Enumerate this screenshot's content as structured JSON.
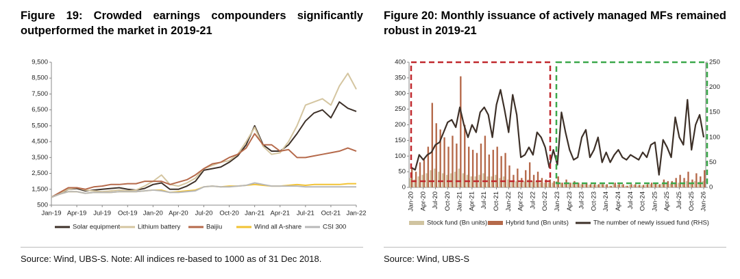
{
  "chart_data": [
    {
      "type": "line",
      "title": "Figure 19: Crowded earnings compounders significantly outperformed the market in 2019-21",
      "source": "Source: Wind, UBS-S. Note: All indices re-based to 1000 as of 31 Dec 2018.",
      "categories": [
        "Jan-19",
        null,
        null,
        "Apr-19",
        null,
        null,
        "Jul-19",
        null,
        null,
        "Oct-19",
        null,
        null,
        "Jan-20",
        null,
        null,
        "Apr-20",
        null,
        null,
        "Jul-20",
        null,
        null,
        "Oct-20",
        null,
        null,
        "Jan-21",
        null,
        null,
        "Apr-21",
        null,
        null,
        "Jul-21",
        null,
        null,
        "Oct-21",
        null,
        null,
        "Jan-22"
      ],
      "ylim": [
        500,
        9500
      ],
      "yticks": [
        500,
        {
          "value": 1500,
          "label": "1,500"
        },
        {
          "value": 2500,
          "label": "2,500"
        },
        {
          "value": 3500,
          "label": "3,500"
        },
        {
          "value": 4500,
          "label": "4,500"
        },
        {
          "value": 5500,
          "label": "5,500"
        },
        {
          "value": 6500,
          "label": "6,500"
        },
        {
          "value": 7500,
          "label": "7,500"
        },
        {
          "value": 8500,
          "label": "8,500"
        },
        {
          "value": 9500,
          "label": "9,500"
        }
      ],
      "series": [
        {
          "name": "Solar equipment",
          "color": "#3d3028",
          "values": [
            1000,
            1200,
            1500,
            1550,
            1400,
            1450,
            1500,
            1550,
            1600,
            1500,
            1450,
            1550,
            1800,
            1900,
            1500,
            1500,
            1700,
            2000,
            2700,
            2800,
            2900,
            3200,
            3600,
            4300,
            5500,
            4300,
            3900,
            3900,
            4300,
            5000,
            5800,
            6300,
            6500,
            6000,
            7000,
            6600,
            6400
          ]
        },
        {
          "name": "Lithium battery",
          "color": "#d4c5a0",
          "values": [
            1000,
            1250,
            1500,
            1600,
            1450,
            1400,
            1350,
            1400,
            1450,
            1400,
            1450,
            1700,
            2000,
            2400,
            1800,
            1700,
            1900,
            2200,
            2800,
            3000,
            3200,
            3300,
            3700,
            4500,
            5400,
            4200,
            3700,
            3800,
            4500,
            5500,
            6800,
            7000,
            7200,
            6800,
            8000,
            8800,
            7800
          ]
        },
        {
          "name": "Baijiu",
          "color": "#b5694a",
          "values": [
            1000,
            1300,
            1600,
            1600,
            1500,
            1650,
            1700,
            1800,
            1800,
            1850,
            1850,
            2000,
            2000,
            2000,
            1800,
            1950,
            2100,
            2400,
            2800,
            3100,
            3200,
            3500,
            3700,
            4100,
            5000,
            4300,
            4300,
            3900,
            4000,
            3500,
            3500,
            3600,
            3700,
            3800,
            3900,
            4100,
            3900
          ]
        },
        {
          "name": "Wind all A-share",
          "color": "#f2c232",
          "values": [
            1000,
            1200,
            1350,
            1350,
            1250,
            1300,
            1300,
            1300,
            1350,
            1350,
            1350,
            1400,
            1450,
            1450,
            1300,
            1350,
            1400,
            1450,
            1650,
            1700,
            1650,
            1700,
            1700,
            1750,
            1800,
            1750,
            1700,
            1700,
            1750,
            1800,
            1750,
            1800,
            1800,
            1800,
            1800,
            1850,
            1850
          ]
        },
        {
          "name": "CSI 300",
          "color": "#b8b8b8",
          "values": [
            1000,
            1200,
            1350,
            1350,
            1250,
            1300,
            1300,
            1300,
            1350,
            1350,
            1350,
            1400,
            1450,
            1400,
            1300,
            1300,
            1350,
            1400,
            1650,
            1700,
            1650,
            1650,
            1700,
            1750,
            1900,
            1800,
            1700,
            1700,
            1700,
            1700,
            1650,
            1650,
            1650,
            1650,
            1650,
            1650,
            1650
          ]
        }
      ]
    },
    {
      "type": "bar",
      "title": "Figure 20: Monthly issuance of actively managed MFs remained robust in 2019-21",
      "source": "Source: Wind, UBS-S",
      "categories": [
        "Jan-20",
        null,
        null,
        "Apr-20",
        null,
        null,
        "Jul-20",
        null,
        null,
        "Oct-20",
        null,
        null,
        "Jan-21",
        null,
        null,
        "Apr-21",
        null,
        null,
        "Jul-21",
        null,
        null,
        "Oct-21",
        null,
        null,
        "Jan-22",
        null,
        null,
        "Apr-22",
        null,
        null,
        "Jul-22",
        null,
        null,
        "Oct-22",
        null,
        null,
        "Jan-23",
        null,
        null,
        "Apr-23",
        null,
        null,
        "Jul-23",
        null,
        null,
        "Oct-23",
        null,
        null,
        "Jan-24",
        null,
        null,
        "Apr-24",
        null,
        null,
        "Jul-24",
        null,
        null,
        "Oct-24",
        null,
        null,
        "Jan-25",
        null,
        null,
        "Apr-25",
        null,
        null,
        "Jul-25",
        null,
        null,
        "Oct-25",
        null,
        null,
        "Jan-26"
      ],
      "ylim": [
        0,
        400
      ],
      "yticks": [
        0,
        50,
        100,
        150,
        200,
        250,
        300,
        350,
        400
      ],
      "y2lim": [
        0,
        250
      ],
      "y2ticks": [
        0,
        50,
        100,
        150,
        200,
        250
      ],
      "series": [
        {
          "name": "Stock fund (Bn units)",
          "color": "#d0c4a0",
          "values": [
            30,
            25,
            35,
            40,
            45,
            55,
            60,
            50,
            45,
            40,
            45,
            50,
            60,
            45,
            40,
            35,
            35,
            40,
            45,
            35,
            35,
            40,
            30,
            35,
            25,
            20,
            20,
            15,
            20,
            25,
            20,
            20,
            15,
            15,
            15,
            15,
            20,
            15,
            15,
            10,
            15,
            10,
            10,
            10,
            8,
            8,
            8,
            10,
            8,
            5,
            10,
            8,
            8,
            5,
            8,
            8,
            6,
            6,
            8,
            10,
            10,
            8,
            12,
            12,
            12,
            15,
            15,
            15,
            20,
            15,
            20,
            18,
            20
          ]
        },
        {
          "name": "Hybrid fund (Bn units)",
          "color": "#b5694a",
          "values": [
            60,
            50,
            80,
            90,
            130,
            270,
            205,
            185,
            160,
            130,
            165,
            140,
            355,
            200,
            130,
            120,
            110,
            140,
            165,
            105,
            120,
            130,
            100,
            110,
            70,
            40,
            60,
            30,
            55,
            80,
            40,
            50,
            30,
            25,
            25,
            20,
            35,
            15,
            25,
            15,
            20,
            15,
            10,
            15,
            10,
            10,
            10,
            10,
            10,
            5,
            15,
            10,
            10,
            5,
            10,
            10,
            8,
            8,
            10,
            15,
            15,
            10,
            25,
            20,
            20,
            30,
            40,
            30,
            50,
            25,
            45,
            35,
            55
          ]
        },
        {
          "name": "The number of newly issued fund (RHS)",
          "color": "#3d3028",
          "type": "line",
          "axis": "y2",
          "values": [
            40,
            35,
            65,
            55,
            65,
            70,
            85,
            90,
            110,
            130,
            135,
            120,
            160,
            125,
            100,
            125,
            110,
            150,
            160,
            145,
            100,
            165,
            195,
            155,
            110,
            185,
            145,
            60,
            65,
            80,
            65,
            110,
            100,
            80,
            40,
            75,
            45,
            150,
            110,
            75,
            55,
            60,
            100,
            115,
            60,
            75,
            100,
            50,
            70,
            50,
            65,
            75,
            60,
            55,
            65,
            60,
            55,
            70,
            60,
            85,
            90,
            25,
            95,
            80,
            60,
            140,
            100,
            85,
            175,
            75,
            125,
            145,
            100
          ]
        }
      ]
    }
  ]
}
